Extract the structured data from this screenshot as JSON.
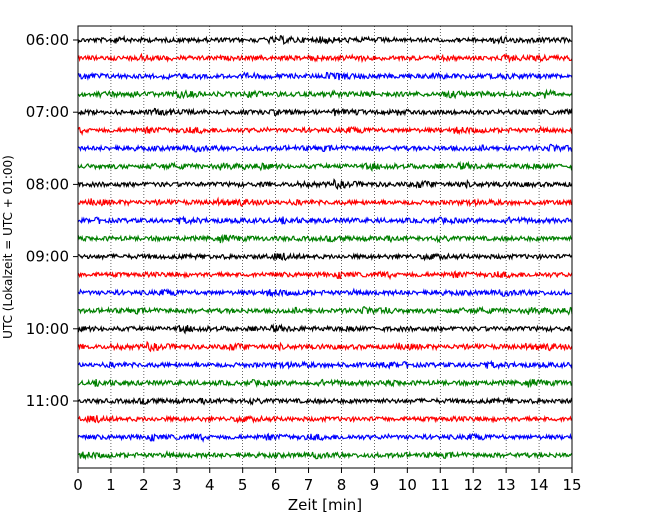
{
  "chart_data": {
    "type": "line",
    "title": "",
    "xlabel": "Zeit  [min]",
    "ylabel": "UTC (Lokalzeit = UTC + 01:00)",
    "xlim": [
      0,
      15
    ],
    "x_ticks": [
      "0",
      "1",
      "2",
      "3",
      "4",
      "5",
      "6",
      "7",
      "8",
      "9",
      "10",
      "11",
      "12",
      "13",
      "14",
      "15"
    ],
    "y_tick_labels": [
      "06:00",
      "07:00",
      "08:00",
      "09:00",
      "10:00",
      "11:00"
    ],
    "trace_interval_minutes": 15,
    "first_trace_time": "06:00",
    "trace_count": 24,
    "trace_colors": [
      "#000000",
      "#ff0000",
      "#0000ff",
      "#008000"
    ],
    "grid": "vertical-dotted",
    "legend": "none"
  }
}
